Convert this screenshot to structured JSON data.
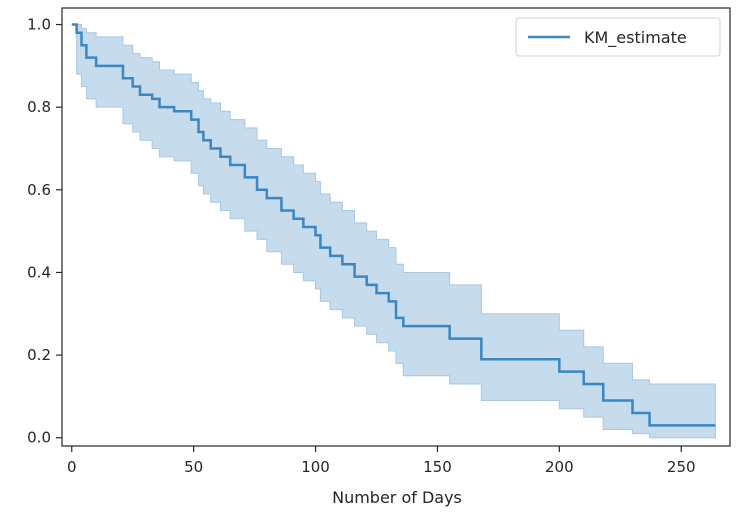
{
  "chart_data": {
    "type": "line",
    "title": "",
    "xlabel": "Number of Days",
    "ylabel": "",
    "xlim": [
      -4,
      270
    ],
    "ylim": [
      -0.02,
      1.04
    ],
    "xticks": [
      0,
      50,
      100,
      150,
      200,
      250
    ],
    "yticks": [
      0.0,
      0.2,
      0.4,
      0.6,
      0.8,
      1.0
    ],
    "xtick_labels": [
      "0",
      "50",
      "100",
      "150",
      "200",
      "250"
    ],
    "ytick_labels": [
      "0.0",
      "0.2",
      "0.4",
      "0.6",
      "0.8",
      "1.0"
    ],
    "grid": false,
    "legend_position": "top-right",
    "series": [
      {
        "name": "KM_estimate",
        "color": "#3a87c4",
        "band_color": "#a8c8e1",
        "step": "post",
        "x": [
          0,
          2,
          4,
          6,
          10,
          21,
          25,
          28,
          33,
          36,
          42,
          49,
          52,
          54,
          57,
          61,
          65,
          71,
          76,
          80,
          86,
          91,
          95,
          100,
          102,
          106,
          111,
          116,
          121,
          125,
          130,
          133,
          136,
          150,
          155,
          167,
          168,
          180,
          200,
          208,
          210,
          218,
          225,
          230,
          237,
          264
        ],
        "values": [
          1.0,
          0.98,
          0.95,
          0.92,
          0.9,
          0.87,
          0.85,
          0.83,
          0.82,
          0.8,
          0.79,
          0.77,
          0.74,
          0.72,
          0.7,
          0.68,
          0.66,
          0.63,
          0.6,
          0.58,
          0.55,
          0.53,
          0.51,
          0.49,
          0.46,
          0.44,
          0.42,
          0.39,
          0.37,
          0.35,
          0.33,
          0.29,
          0.27,
          0.27,
          0.24,
          0.24,
          0.19,
          0.19,
          0.16,
          0.16,
          0.13,
          0.09,
          0.09,
          0.06,
          0.03,
          0.03
        ],
        "ci_upper": [
          1.0,
          1.0,
          0.99,
          0.98,
          0.97,
          0.95,
          0.93,
          0.92,
          0.91,
          0.89,
          0.88,
          0.86,
          0.84,
          0.82,
          0.81,
          0.79,
          0.77,
          0.75,
          0.72,
          0.7,
          0.68,
          0.66,
          0.64,
          0.62,
          0.59,
          0.57,
          0.55,
          0.52,
          0.5,
          0.48,
          0.46,
          0.42,
          0.4,
          0.4,
          0.37,
          0.37,
          0.3,
          0.3,
          0.26,
          0.26,
          0.22,
          0.18,
          0.18,
          0.14,
          0.13,
          0.13
        ],
        "ci_lower": [
          1.0,
          0.88,
          0.85,
          0.82,
          0.8,
          0.76,
          0.74,
          0.72,
          0.7,
          0.68,
          0.67,
          0.64,
          0.61,
          0.59,
          0.57,
          0.55,
          0.53,
          0.5,
          0.48,
          0.45,
          0.42,
          0.4,
          0.38,
          0.36,
          0.33,
          0.31,
          0.29,
          0.27,
          0.25,
          0.23,
          0.21,
          0.18,
          0.15,
          0.15,
          0.13,
          0.13,
          0.09,
          0.09,
          0.07,
          0.07,
          0.05,
          0.02,
          0.02,
          0.01,
          0.0,
          0.0
        ]
      }
    ]
  }
}
